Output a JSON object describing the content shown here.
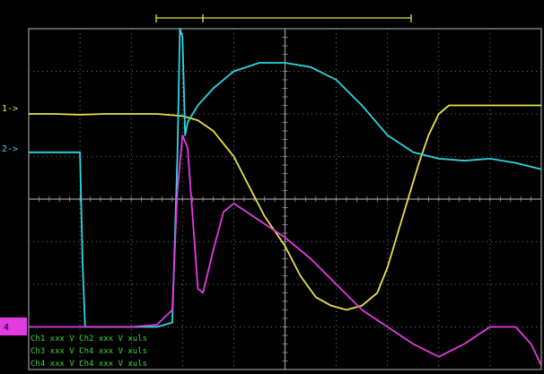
{
  "scope": {
    "colors": {
      "background": "#000000",
      "grid": "#9a9a9a",
      "ch1": "#e6e14a",
      "ch2": "#2fd6e0",
      "ch4": "#e23be0",
      "readout": "#3bd43b"
    },
    "markers": {
      "ch1": "1->",
      "ch2": "2->",
      "ch4": "4"
    },
    "readouts": [
      "Ch1  xxx  V  Ch2  xxx  V  xuls",
      "Ch3  xxx  V  Ch4  xxx  V  xuls",
      "Ch4  xxx  V  Ch4  xxx  V  xuls"
    ]
  },
  "chart_data": {
    "type": "line",
    "title": "",
    "xlabel": "",
    "ylabel": "",
    "grid": true,
    "xlim": [
      0,
      10
    ],
    "ylim": [
      -4,
      4
    ],
    "series": [
      {
        "channel": "ch1",
        "x": [
          0,
          0.5,
          1.0,
          1.5,
          2.0,
          2.5,
          3.0,
          3.3,
          3.6,
          4.0,
          4.3,
          4.6,
          5.0,
          5.3,
          5.6,
          5.9,
          6.2,
          6.5,
          6.8,
          7.0,
          7.2,
          7.4,
          7.6,
          7.8,
          8.0,
          8.2,
          8.5,
          9.0,
          9.5,
          10
        ],
        "y": [
          2.0,
          2.0,
          1.98,
          2.0,
          2.0,
          2.0,
          1.95,
          1.85,
          1.6,
          1.0,
          0.3,
          -0.4,
          -1.1,
          -1.8,
          -2.3,
          -2.5,
          -2.6,
          -2.5,
          -2.2,
          -1.6,
          -0.8,
          0.0,
          0.8,
          1.5,
          2.0,
          2.2,
          2.2,
          2.2,
          2.2,
          2.2
        ]
      },
      {
        "channel": "ch2",
        "x": [
          0,
          0.5,
          1.0,
          1.05,
          1.1,
          1.5,
          2.0,
          2.5,
          2.8,
          2.9,
          2.95,
          3.0,
          3.05,
          3.1,
          3.3,
          3.6,
          4.0,
          4.5,
          5.0,
          5.5,
          6.0,
          6.5,
          7.0,
          7.5,
          8.0,
          8.5,
          9.0,
          9.5,
          10
        ],
        "y": [
          1.1,
          1.1,
          1.1,
          -1.5,
          -3.0,
          -3.0,
          -3.0,
          -3.0,
          -2.9,
          1.0,
          4.0,
          3.8,
          1.5,
          1.8,
          2.2,
          2.6,
          3.0,
          3.2,
          3.2,
          3.1,
          2.8,
          2.2,
          1.5,
          1.1,
          0.95,
          0.9,
          0.95,
          0.85,
          0.7
        ]
      },
      {
        "channel": "ch4",
        "x": [
          0,
          0.5,
          1.0,
          1.5,
          2.0,
          2.5,
          2.8,
          2.9,
          3.0,
          3.1,
          3.3,
          3.4,
          3.6,
          3.8,
          4.0,
          4.5,
          5.0,
          5.5,
          6.0,
          6.5,
          7.0,
          7.5,
          8.0,
          8.5,
          9.0,
          9.5,
          9.8,
          10
        ],
        "y": [
          -3.0,
          -3.0,
          -3.0,
          -3.0,
          -3.0,
          -2.95,
          -2.6,
          0.2,
          1.5,
          1.2,
          -2.1,
          -2.2,
          -1.2,
          -0.3,
          -0.1,
          -0.5,
          -0.9,
          -1.4,
          -2.0,
          -2.6,
          -3.0,
          -3.4,
          -3.7,
          -3.4,
          -3.0,
          -3.0,
          -3.4,
          -3.9
        ]
      }
    ]
  }
}
